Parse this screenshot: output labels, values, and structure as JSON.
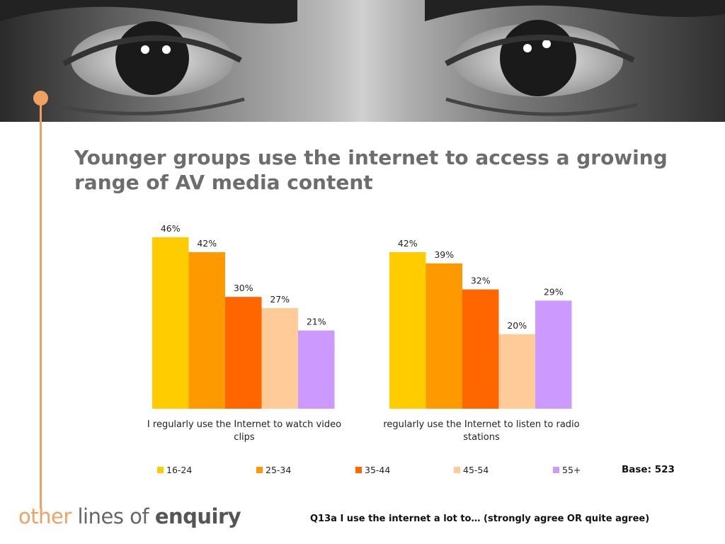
{
  "title": "Younger groups use the internet to access a growing range of AV media content",
  "base_note": "Base: 523",
  "footnote": "Q13a I use the internet a lot to… (strongly agree OR quite agree)",
  "logo": {
    "word1": "other",
    "word2": "lines of",
    "word3": "enquiry"
  },
  "colors": {
    "accent": "#f0a060",
    "title": "#6d6d6d"
  },
  "chart_data": {
    "type": "bar",
    "categories": [
      "I regularly use the Internet to watch video clips",
      "regularly use the Internet to listen to radio stations"
    ],
    "category_lines": [
      [
        "I regularly use the Internet to watch video",
        "clips"
      ],
      [
        "regularly use the Internet to listen to radio",
        "stations"
      ]
    ],
    "series": [
      {
        "name": "16-24",
        "color": "#ffcc00",
        "values": [
          46,
          42
        ],
        "labels": [
          "46%",
          "42%"
        ]
      },
      {
        "name": "25-34",
        "color": "#ff9900",
        "values": [
          42,
          39
        ],
        "labels": [
          "42%",
          "39%"
        ]
      },
      {
        "name": "35-44",
        "color": "#ff6600",
        "values": [
          30,
          32
        ],
        "labels": [
          "30%",
          "32%"
        ]
      },
      {
        "name": "45-54",
        "color": "#ffcc99",
        "values": [
          27,
          20
        ],
        "labels": [
          "27%",
          "20%"
        ]
      },
      {
        "name": "55+",
        "color": "#cc99ff",
        "values": [
          21,
          29
        ],
        "labels": [
          "21%",
          "29%"
        ]
      }
    ],
    "ylim": [
      0,
      46
    ],
    "legend_position": "bottom",
    "grid": false
  }
}
